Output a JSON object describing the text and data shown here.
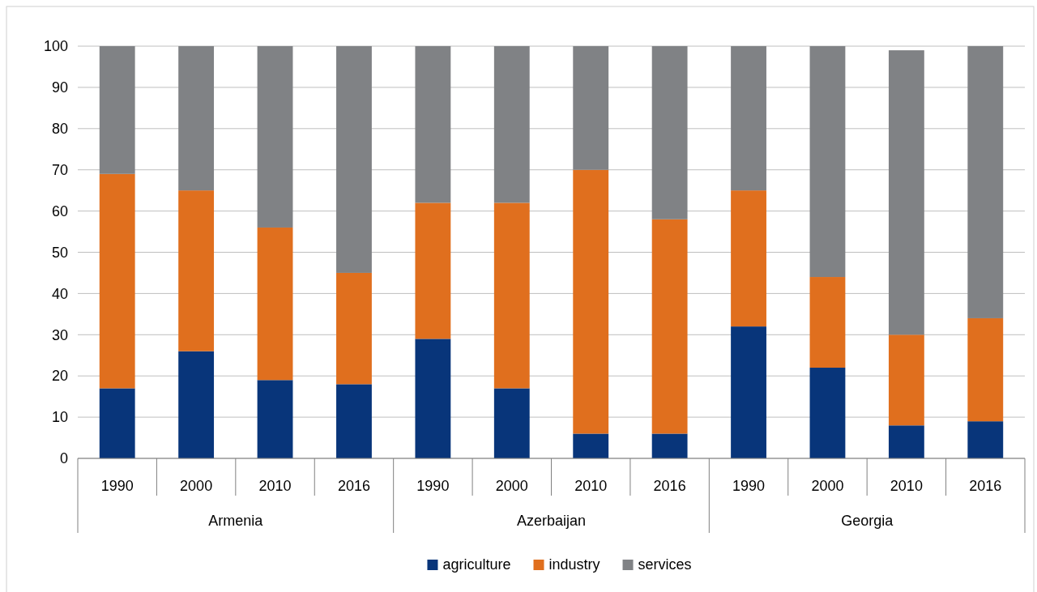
{
  "chart_data": {
    "type": "bar",
    "stacked": true,
    "categories": [
      "1990",
      "2000",
      "2010",
      "2016",
      "1990",
      "2000",
      "2010",
      "2016",
      "1990",
      "2000",
      "2010",
      "2016"
    ],
    "annotations": [
      "Armenia",
      "Azerbaijan",
      "Georgia"
    ],
    "series": [
      {
        "name": "agriculture",
        "color": "#08357a",
        "values": [
          17,
          26,
          19,
          18,
          29,
          17,
          6,
          6,
          32,
          22,
          8,
          9
        ]
      },
      {
        "name": "industry",
        "color": "#e06f1e",
        "values": [
          52,
          39,
          37,
          27,
          33,
          45,
          64,
          52,
          33,
          22,
          22,
          25
        ]
      },
      {
        "name": "services",
        "color": "#808285",
        "values": [
          31,
          35,
          44,
          55,
          38,
          38,
          30,
          42,
          35,
          56,
          69,
          66
        ]
      }
    ],
    "ylim": [
      0,
      100
    ],
    "yticks": [
      0,
      10,
      20,
      30,
      40,
      50,
      60,
      70,
      80,
      90,
      100
    ],
    "grid": "y",
    "legend": "bottom"
  }
}
